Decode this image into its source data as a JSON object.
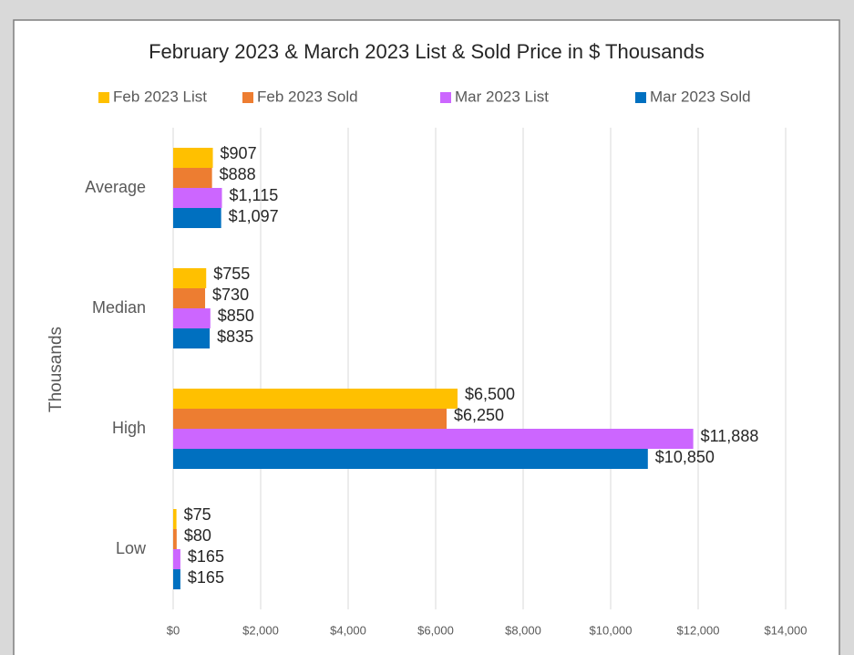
{
  "chart_data": {
    "type": "bar",
    "orientation": "horizontal",
    "title": "February 2023 & March 2023 List & Sold Price in $ Thousands",
    "y_label": "Thousands",
    "categories": [
      "Average",
      "Median",
      "High",
      "Low"
    ],
    "series": [
      {
        "name": "Feb 2023 List",
        "color": "#ffc000",
        "values": [
          907,
          755,
          6500,
          75
        ],
        "value_labels": [
          "$907",
          "$755",
          "$6,500",
          "$75"
        ]
      },
      {
        "name": "Feb 2023 Sold",
        "color": "#ed7d31",
        "values": [
          888,
          730,
          6250,
          80
        ],
        "value_labels": [
          "$888",
          "$730",
          "$6,250",
          "$80"
        ]
      },
      {
        "name": "Mar 2023 List",
        "color": "#cc66ff",
        "values": [
          1115,
          850,
          11888,
          165
        ],
        "value_labels": [
          "$1,115",
          "$850",
          "$11,888",
          "$165"
        ]
      },
      {
        "name": "Mar 2023 Sold",
        "color": "#0070c0",
        "values": [
          1097,
          835,
          10850,
          165
        ],
        "value_labels": [
          "$1,097",
          "$835",
          "$10,850",
          "$165"
        ]
      }
    ],
    "xlim": [
      0,
      14000
    ],
    "xticks": [
      {
        "value": 0,
        "label": "$0"
      },
      {
        "value": 2000,
        "label": "$2,000"
      },
      {
        "value": 4000,
        "label": "$4,000"
      },
      {
        "value": 6000,
        "label": "$6,000"
      },
      {
        "value": 8000,
        "label": "$8,000"
      },
      {
        "value": 10000,
        "label": "$10,000"
      },
      {
        "value": 12000,
        "label": "$12,000"
      },
      {
        "value": 14000,
        "label": "$14,000"
      }
    ],
    "grid": true,
    "legend": "top"
  }
}
